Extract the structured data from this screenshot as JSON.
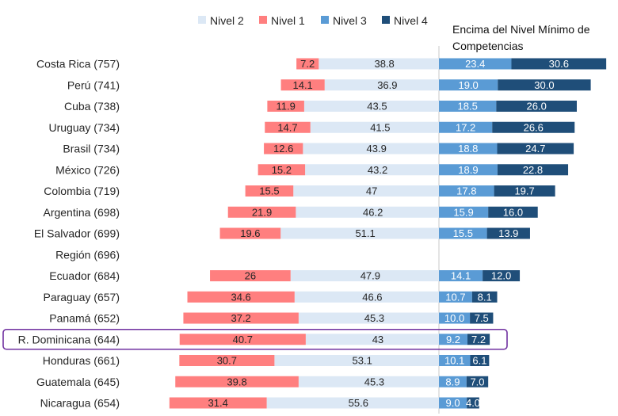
{
  "chart_data": {
    "type": "bar",
    "orientation": "horizontal",
    "stacking": "diverging",
    "annotation": "Encima del Nivel Mínimo de Competencias",
    "highlighted_category": "R. Dominicana (644)",
    "legend": [
      {
        "name": "Nivel 2",
        "color": "#dce8f5"
      },
      {
        "name": "Nivel 1",
        "color": "#ff7f7f"
      },
      {
        "name": "Nivel 3",
        "color": "#5a9bd5"
      },
      {
        "name": "Nivel 4",
        "color": "#1f4e79"
      }
    ],
    "categories": [
      "Costa Rica (757)",
      "Perú (741)",
      "Cuba (738)",
      "Uruguay (734)",
      "Brasil (734)",
      "México (726)",
      "Colombia (719)",
      "Argentina (698)",
      "El Salvador (699)",
      "Región (696)",
      "Ecuador (684)",
      "Paraguay (657)",
      "Panamá (652)",
      "R. Dominicana (644)",
      "Honduras (661)",
      "Guatemala (645)",
      "Nicaragua (654)"
    ],
    "series": [
      {
        "name": "Nivel 1",
        "values": [
          7.2,
          14.1,
          11.9,
          14.7,
          12.6,
          15.2,
          15.5,
          21.9,
          19.6,
          null,
          26,
          34.6,
          37.2,
          40.7,
          30.7,
          39.8,
          31.4
        ],
        "labels": [
          "7.2",
          "14.1",
          "11.9",
          "14.7",
          "12.6",
          "15.2",
          "15.5",
          "21.9",
          "19.6",
          "",
          "26",
          "34.6",
          "37.2",
          "40.7",
          "30.7",
          "39.8",
          "31.4"
        ]
      },
      {
        "name": "Nivel 2",
        "values": [
          38.8,
          36.9,
          43.5,
          41.5,
          43.9,
          43.2,
          47,
          46.2,
          51.1,
          null,
          47.9,
          46.6,
          45.3,
          43,
          53.1,
          45.3,
          55.6
        ],
        "labels": [
          "38.8",
          "36.9",
          "43.5",
          "41.5",
          "43.9",
          "43.2",
          "47",
          "46.2",
          "51.1",
          "",
          "47.9",
          "46.6",
          "45.3",
          "43",
          "53.1",
          "45.3",
          "55.6"
        ]
      },
      {
        "name": "Nivel 3",
        "values": [
          23.4,
          19.0,
          18.5,
          17.2,
          18.8,
          18.9,
          17.8,
          15.9,
          15.5,
          null,
          14.1,
          10.7,
          10.0,
          9.2,
          10.1,
          8.9,
          9.0
        ],
        "labels": [
          "23.4",
          "19.0",
          "18.5",
          "17.2",
          "18.8",
          "18.9",
          "17.8",
          "15.9",
          "15.5",
          "",
          "14.1",
          "10.7",
          "10.0",
          "9.2",
          "10.1",
          "8.9",
          "9.0"
        ]
      },
      {
        "name": "Nivel 4",
        "values": [
          30.6,
          30.0,
          26.0,
          26.6,
          24.7,
          22.8,
          19.7,
          16.0,
          13.9,
          null,
          12.0,
          8.1,
          7.5,
          7.2,
          6.1,
          7.0,
          4.0
        ],
        "labels": [
          "30.6",
          "30.0",
          "26.0",
          "26.6",
          "24.7",
          "22.8",
          "19.7",
          "16.0",
          "13.9",
          "",
          "12.0",
          "8.1",
          "7.5",
          "7.2",
          "6.1",
          "7.0",
          "4.0"
        ]
      }
    ]
  }
}
